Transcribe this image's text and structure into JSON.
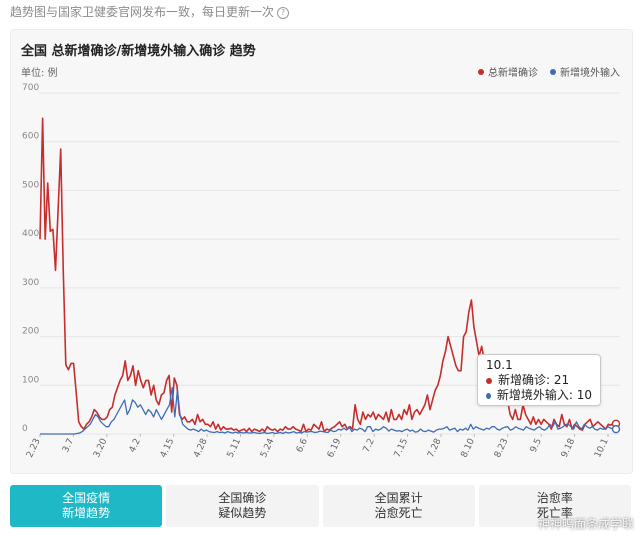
{
  "header": {
    "note": "趋势图与国家卫健委官网发布一致，每日更新一次"
  },
  "chart_data": {
    "type": "line",
    "title": "全国 总新增确诊/新增境外输入确诊 趋势",
    "unit_label": "单位: 例",
    "ylim": [
      0,
      700
    ],
    "yticks": [
      0,
      100,
      200,
      300,
      400,
      500,
      600,
      700
    ],
    "xtick_labels": [
      "2.23",
      "3.7",
      "3.20",
      "4.2",
      "4.15",
      "4.28",
      "5.11",
      "5.24",
      "6.6",
      "6.19",
      "7.2",
      "7.15",
      "7.28",
      "8.10",
      "8.23",
      "9.5",
      "9.18",
      "10.1"
    ],
    "grid": true,
    "legend_position": "top-right",
    "colors": {
      "total": "#c62d2d",
      "imported": "#3e6db5"
    },
    "series": [
      {
        "name": "总新增确诊",
        "key": "total",
        "values": [
          400,
          648,
          400,
          515,
          416,
          420,
          336,
          460,
          585,
          340,
          142,
          132,
          145,
          145,
          85,
          25,
          15,
          10,
          20,
          25,
          35,
          50,
          45,
          35,
          30,
          30,
          35,
          50,
          55,
          80,
          95,
          110,
          120,
          150,
          110,
          120,
          140,
          100,
          130,
          110,
          95,
          110,
          110,
          80,
          100,
          70,
          60,
          80,
          85,
          110,
          120,
          45,
          115,
          100,
          40,
          30,
          35,
          25,
          25,
          30,
          20,
          40,
          25,
          30,
          20,
          20,
          15,
          25,
          10,
          20,
          8,
          15,
          10,
          10,
          12,
          8,
          10,
          5,
          8,
          10,
          5,
          12,
          5,
          10,
          8,
          5,
          10,
          5,
          15,
          10,
          8,
          10,
          5,
          10,
          8,
          15,
          10,
          10,
          15,
          10,
          8,
          5,
          20,
          5,
          10,
          8,
          20,
          15,
          10,
          25,
          5,
          10,
          8,
          12,
          15,
          20,
          25,
          15,
          20,
          10,
          15,
          10,
          60,
          30,
          20,
          45,
          30,
          40,
          35,
          45,
          30,
          40,
          35,
          30,
          45,
          25,
          50,
          30,
          30,
          40,
          30,
          50,
          40,
          60,
          30,
          45,
          50,
          40,
          50,
          60,
          80,
          50,
          70,
          90,
          100,
          120,
          150,
          170,
          200,
          180,
          160,
          140,
          130,
          130,
          200,
          210,
          250,
          275,
          220,
          190,
          160,
          180,
          150,
          140,
          120,
          90,
          100,
          80,
          90,
          60,
          80,
          70,
          40,
          30,
          50,
          30,
          30,
          60,
          40,
          30,
          20,
          35,
          20,
          30,
          20,
          30,
          25,
          20,
          10,
          30,
          20,
          15,
          40,
          20,
          15,
          30,
          10,
          20,
          15,
          10,
          8,
          20,
          25,
          30,
          15,
          20,
          25,
          20,
          15,
          10,
          20,
          18,
          23,
          21
        ],
        "tooltip_value": 21
      },
      {
        "name": "新增境外输入",
        "key": "imported",
        "values": [
          0,
          0,
          0,
          0,
          0,
          0,
          0,
          0,
          0,
          0,
          0,
          0,
          0,
          0,
          1,
          2,
          5,
          10,
          15,
          20,
          30,
          40,
          35,
          25,
          20,
          15,
          15,
          25,
          30,
          40,
          50,
          60,
          70,
          40,
          50,
          70,
          65,
          55,
          60,
          50,
          40,
          50,
          45,
          35,
          50,
          40,
          30,
          40,
          50,
          60,
          95,
          35,
          90,
          40,
          20,
          15,
          10,
          8,
          10,
          8,
          5,
          10,
          6,
          8,
          5,
          4,
          3,
          5,
          3,
          4,
          2,
          5,
          3,
          2,
          4,
          2,
          3,
          2,
          3,
          2,
          2,
          3,
          2,
          1,
          2,
          3,
          1,
          2,
          3,
          1,
          2,
          3,
          1,
          4,
          2,
          3,
          5,
          2,
          3,
          2,
          5,
          4,
          5,
          5,
          3,
          4,
          6,
          5,
          4,
          3,
          8,
          5,
          6,
          10,
          8,
          12,
          8,
          15,
          5,
          10,
          8,
          12,
          10,
          5,
          15,
          15,
          5,
          10,
          8,
          10,
          15,
          12,
          6,
          10,
          8,
          6,
          7,
          5,
          8,
          10,
          6,
          8,
          4,
          5,
          10,
          6,
          5,
          8,
          6,
          4,
          8,
          10,
          10,
          12,
          15,
          8,
          10,
          12,
          5,
          10,
          8,
          12,
          8,
          20,
          10,
          15,
          12,
          10,
          8,
          12,
          10,
          15,
          15,
          10,
          8,
          12,
          14,
          15,
          8,
          10,
          15,
          12,
          10,
          8,
          15,
          12,
          10,
          8,
          12,
          15,
          10,
          8,
          12,
          20,
          15,
          25,
          10,
          12,
          15,
          20,
          20,
          15,
          10,
          25,
          15,
          10,
          20,
          15,
          12,
          15,
          10,
          8,
          12,
          10,
          10,
          15,
          12,
          10,
          10
        ],
        "tooltip_value": 10
      }
    ],
    "tooltip": {
      "date": "10.1",
      "items": [
        "新增确诊",
        "新增境外输入"
      ]
    }
  },
  "tabs": [
    {
      "line1": "全国疫情",
      "line2": "新增趋势",
      "active": true
    },
    {
      "line1": "全国确诊",
      "line2": "疑似趋势",
      "active": false
    },
    {
      "line1": "全国累计",
      "line2": "治愈死亡",
      "active": false
    },
    {
      "line1": "治愈率",
      "line2": "死亡率",
      "active": false
    }
  ],
  "watermark": "神神鸣面条成学联"
}
